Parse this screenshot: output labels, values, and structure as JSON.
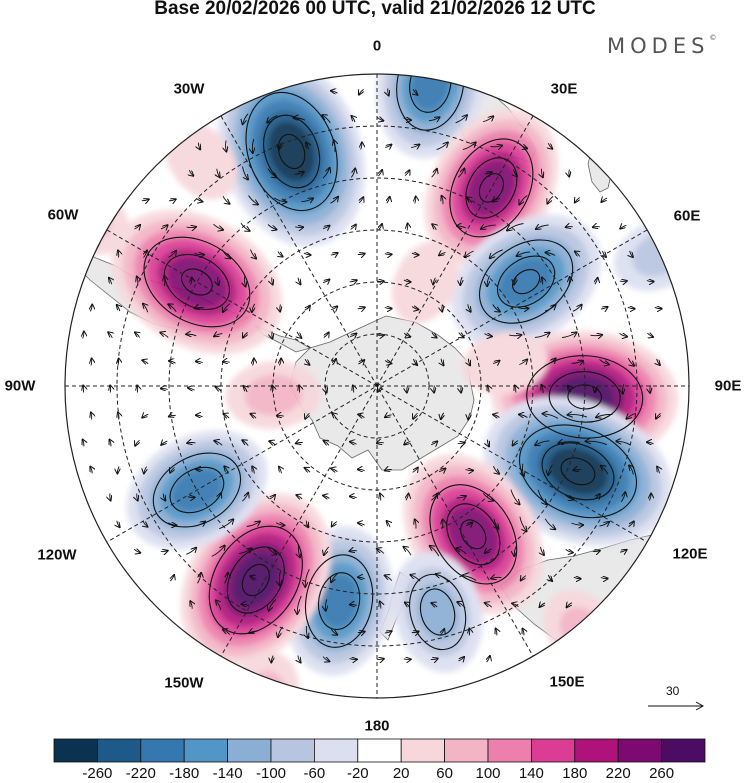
{
  "title": "Base 20/02/2026 00 UTC, valid 21/02/2026 12 UTC",
  "brand": "MODES",
  "brand_mark": "©",
  "longitude_labels": {
    "lon_0": "0",
    "lon_30e": "30E",
    "lon_60e": "60E",
    "lon_90e": "90E",
    "lon_120e": "120E",
    "lon_150e": "150E",
    "lon_180": "180",
    "lon_150w": "150W",
    "lon_120w": "120W",
    "lon_90w": "90W",
    "lon_60w": "60W",
    "lon_30w": "30W"
  },
  "reference_vector": {
    "value": "30"
  },
  "colorbar": {
    "labels": [
      "-260",
      "-220",
      "-180",
      "-140",
      "-100",
      "-60",
      "-20",
      "20",
      "60",
      "100",
      "140",
      "180",
      "220",
      "260"
    ],
    "colors": [
      "#0b3251",
      "#1d5a8a",
      "#3578b0",
      "#5395c6",
      "#8aaed4",
      "#b8c5e0",
      "#dcdff0",
      "#ffffff",
      "#f7d7dc",
      "#f3b4c6",
      "#ec7fab",
      "#db3d95",
      "#b0127c",
      "#7d0a70",
      "#4d0c63"
    ]
  },
  "anomalies": [
    {
      "lon": 340,
      "colat": 48,
      "value": -280
    },
    {
      "lon": 10,
      "colat": 59,
      "value": -180
    },
    {
      "lon": 30,
      "colat": 44,
      "value": 220
    },
    {
      "lon": 55,
      "colat": 35,
      "value": -210
    },
    {
      "lon": 93,
      "colat": 40,
      "value": 260
    },
    {
      "lon": 113,
      "colat": 42,
      "value": -280
    },
    {
      "lon": 147,
      "colat": 34,
      "value": 230
    },
    {
      "lon": 165,
      "colat": 45,
      "value": -120
    },
    {
      "lon": 190,
      "colat": 42,
      "value": -180
    },
    {
      "lon": 212,
      "colat": 44,
      "value": 260
    },
    {
      "lon": 240,
      "colat": 40,
      "value": -180
    },
    {
      "lon": 300,
      "colat": 40,
      "value": 250
    },
    {
      "lon": 265,
      "colat": 20,
      "value": 60
    },
    {
      "lon": 322,
      "colat": 55,
      "value": 40
    },
    {
      "lon": 25,
      "colat": 22,
      "value": 40
    },
    {
      "lon": 80,
      "colat": 25,
      "value": 40
    },
    {
      "lon": 140,
      "colat": 62,
      "value": 60
    },
    {
      "lon": 300,
      "colat": 65,
      "value": 60
    },
    {
      "lon": 200,
      "colat": 64,
      "value": 60
    },
    {
      "lon": 65,
      "colat": 60,
      "value": -60
    }
  ]
}
